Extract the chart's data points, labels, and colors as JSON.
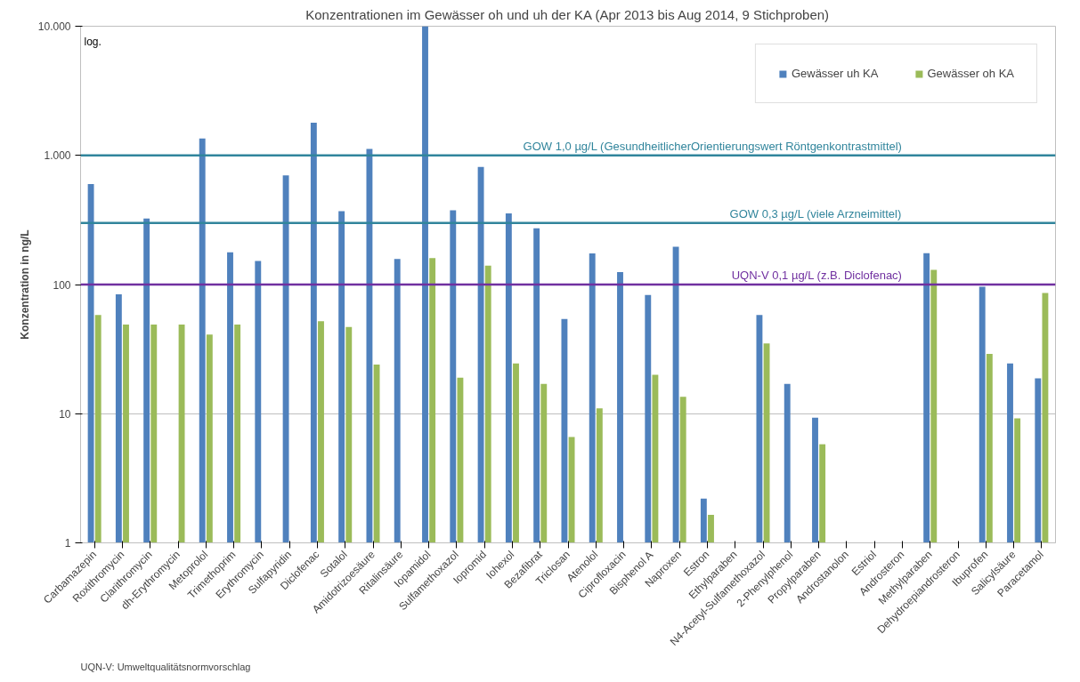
{
  "chart_data": {
    "type": "bar",
    "title": "Konzentrationen im Gewässer oh und uh der KA (Apr 2013 bis Aug 2014, 9 Stichproben)",
    "ylabel": "Konzentration in ng/L",
    "categories": [
      "Carbamazepin",
      "Roxithromycin",
      "Clarithromycin",
      "dh-Erythromycin",
      "Metoprolol",
      "Trimethoprim",
      "Erythromycin",
      "Sulfapyridin",
      "Diclofenac",
      "Sotalol",
      "Amidotrizoesäure",
      "Ritalinsäure",
      "Iopamidol",
      "Sulfamethoxazol",
      "Iopromid",
      "Iohexol",
      "Bezafibrat",
      "Triclosan",
      "Atenolol",
      "Ciprofloxacin",
      "Bisphenol A",
      "Naproxen",
      "Estron",
      "Ethylparaben",
      "N4-Acetyl-Sulfamethoxazol",
      "2-Phenylphenol",
      "Propylparaben",
      "Androstanolon",
      "Estriol",
      "Androsteron",
      "Methylparaben",
      "Dehydroepiandrosteron",
      "Ibuprofen",
      "Salicylsäure",
      "Paracetamol"
    ],
    "series": [
      {
        "name": "Gewässer uh KA",
        "color": "#4f81bd",
        "values": [
          600,
          84,
          325,
          null,
          1350,
          178,
          152,
          700,
          1790,
          370,
          1120,
          158,
          10000,
          375,
          815,
          355,
          273,
          54,
          174,
          125,
          83,
          196,
          2.2,
          null,
          58,
          17,
          9.3,
          null,
          null,
          null,
          175,
          null,
          96,
          24.5,
          18.8
        ]
      },
      {
        "name": "Gewässer oh KA",
        "color": "#9bbb59",
        "values": [
          58,
          49,
          49,
          49,
          41,
          49,
          null,
          null,
          52,
          47,
          24,
          null,
          160,
          19,
          140,
          24.5,
          17,
          6.6,
          11,
          null,
          20,
          13.5,
          1.65,
          null,
          35,
          null,
          5.8,
          null,
          null,
          null,
          130,
          null,
          29,
          9.2,
          86
        ]
      }
    ],
    "log": "y",
    "ylim": [
      1,
      10000
    ],
    "yticks": [
      1,
      10,
      100,
      {
        "value": 1000,
        "label": "1.000"
      },
      {
        "value": 10000,
        "label": "10.000"
      }
    ],
    "grid": "y",
    "legend": "top right",
    "ref_lines": [
      {
        "axis": "y",
        "value": 1000,
        "label": "GOW 1,0 µg/L (GesundheitlicherOrientierungswert Röntgenkontrastmittel)",
        "color": "#31859c"
      },
      {
        "axis": "y",
        "value": 300,
        "label": "GOW 0,3 µg/L (viele Arzneimittel)",
        "color": "#31859c"
      },
      {
        "axis": "y",
        "value": 100,
        "label": "UQN-V 0,1 µg/L (z.B. Diclofenac)",
        "color": "#7030a0"
      }
    ],
    "annotations": [
      "log.",
      "UQN-V: Umweltqualitätsnormvorschlag"
    ]
  }
}
